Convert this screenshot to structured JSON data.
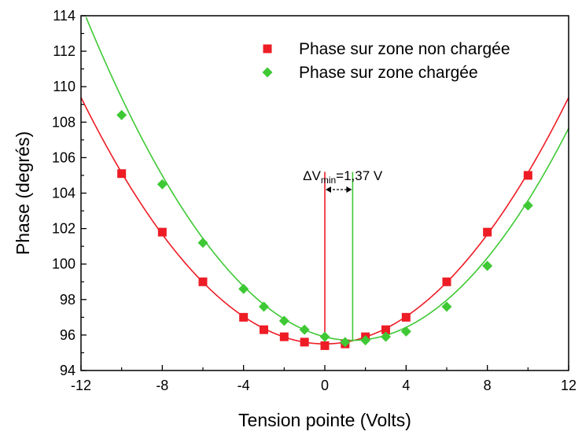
{
  "chart_data": {
    "type": "scatter",
    "xlabel": "Tension pointe (Volts)",
    "ylabel": "Phase (degrés)",
    "xlim": [
      -12,
      12
    ],
    "ylim": [
      94,
      114
    ],
    "xticks": [
      -12,
      -8,
      -4,
      0,
      4,
      8,
      12
    ],
    "xtick_labels": [
      "-12",
      "-8",
      "-4",
      "0",
      "4",
      "8",
      "12"
    ],
    "yticks": [
      94,
      96,
      98,
      100,
      102,
      104,
      106,
      108,
      110,
      112,
      114
    ],
    "ytick_labels": [
      "94",
      "96",
      "98",
      "100",
      "102",
      "104",
      "106",
      "108",
      "110",
      "112",
      "114"
    ],
    "legend_position": "top-right",
    "series": [
      {
        "name": "Phase sur zone non chargée",
        "color": "#ee1c25",
        "marker": "square",
        "x": [
          -10,
          -8,
          -6,
          -4,
          -3,
          -2,
          -1,
          0,
          1,
          2,
          3,
          4,
          6,
          8,
          10
        ],
        "y": [
          105.1,
          101.8,
          99.0,
          97.0,
          96.3,
          95.9,
          95.6,
          95.4,
          95.5,
          95.9,
          96.3,
          97.0,
          99.0,
          101.8,
          105.0
        ],
        "fit": {
          "x0": 0.0,
          "y0": 95.5,
          "a": 0.0965
        }
      },
      {
        "name": "Phase sur zone chargée",
        "color": "#3ec934",
        "marker": "diamond",
        "x": [
          -10,
          -8,
          -6,
          -4,
          -3,
          -2,
          -1,
          0,
          1,
          2,
          3,
          4,
          6,
          8,
          10
        ],
        "y": [
          108.4,
          104.5,
          101.2,
          98.6,
          97.6,
          96.8,
          96.3,
          95.9,
          95.6,
          95.7,
          95.9,
          96.2,
          97.6,
          99.9,
          103.3
        ],
        "fit": {
          "x0": 1.37,
          "y0": 95.7,
          "a": 0.1058
        }
      }
    ],
    "annotation": {
      "prefix": "ΔV",
      "subscript": "min",
      "suffix": "=1,37 V",
      "marker_x": [
        0,
        1.37
      ],
      "marker_top_y": 105.2,
      "arrow_y": 104.2
    }
  }
}
